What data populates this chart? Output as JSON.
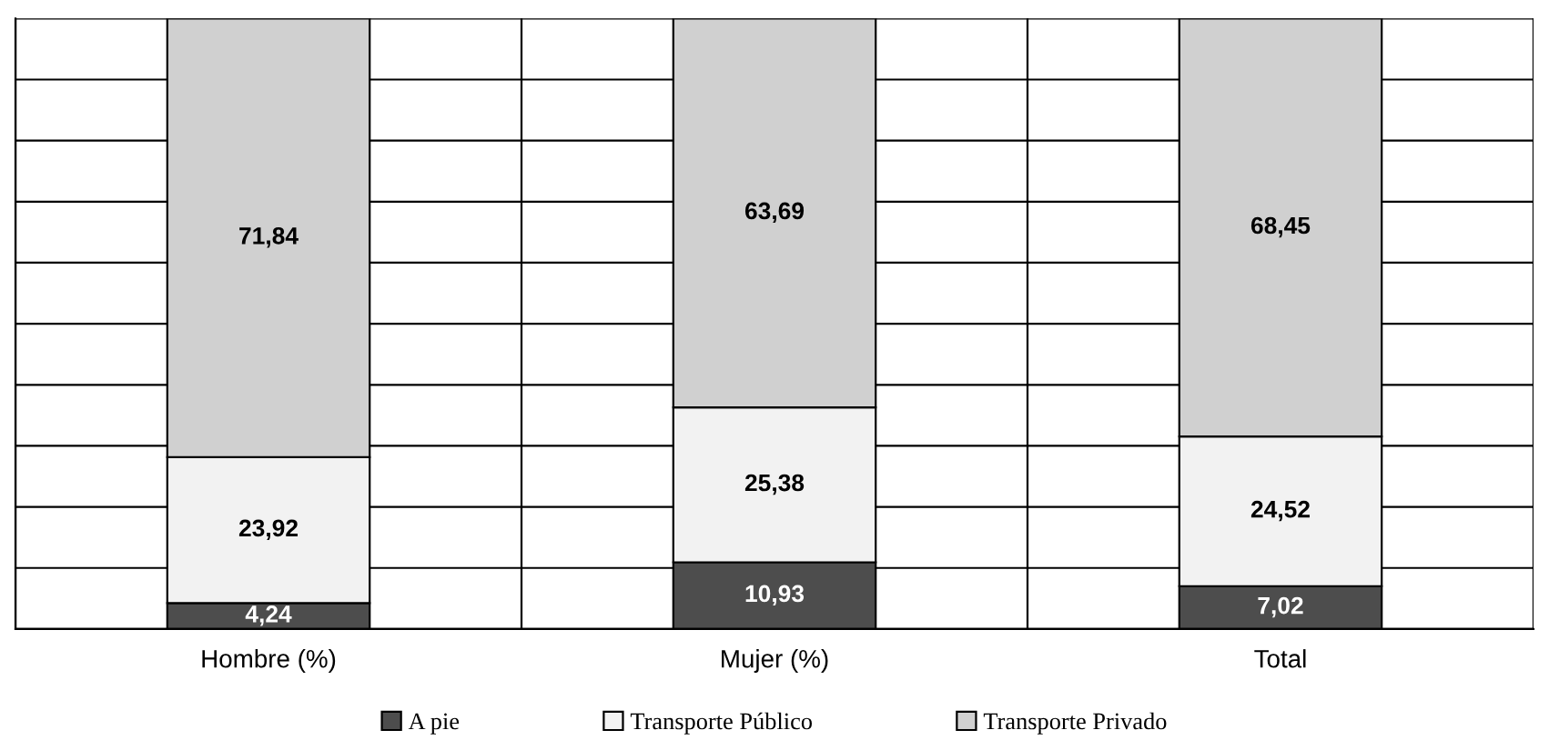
{
  "chart_data": {
    "type": "bar",
    "stacked": true,
    "categories": [
      "Hombre (%)",
      "Mujer (%)",
      "Total"
    ],
    "series": [
      {
        "name": "A pie",
        "color": "#4d4d4d",
        "values": [
          4.24,
          10.93,
          7.02
        ],
        "value_labels": [
          "4,24",
          "10,93",
          "7,02"
        ]
      },
      {
        "name": "Transporte Público",
        "color": "#f2f2f2",
        "values": [
          23.92,
          25.38,
          24.52
        ],
        "value_labels": [
          "23,92",
          "25,38",
          "24,52"
        ]
      },
      {
        "name": "Transporte Privado",
        "color": "#d0d0d0",
        "values": [
          71.84,
          63.69,
          68.45
        ],
        "value_labels": [
          "71,84",
          "63,69",
          "68,45"
        ]
      }
    ],
    "ylim": [
      0,
      100
    ],
    "yticks": [
      {
        "value": 0,
        "label": null
      },
      {
        "value": 10,
        "label": null
      },
      {
        "value": 20,
        "label": null
      },
      {
        "value": 30,
        "label": null
      },
      {
        "value": 40,
        "label": null
      },
      {
        "value": 50,
        "label": null
      },
      {
        "value": 60,
        "label": null
      },
      {
        "value": 70,
        "label": null
      },
      {
        "value": 80,
        "label": null
      },
      {
        "value": 90,
        "label": null
      },
      {
        "value": 100,
        "label": null
      }
    ],
    "tick_labels": "x",
    "grid": true,
    "legend": "bottom"
  }
}
